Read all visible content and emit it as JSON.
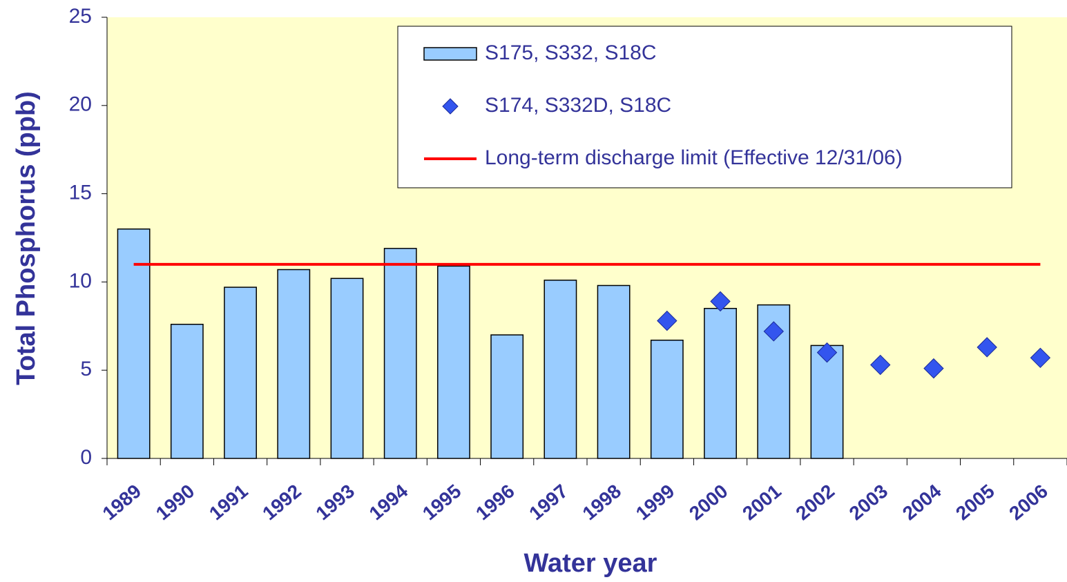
{
  "chart_data": {
    "type": "bar",
    "x_label": "Water year",
    "y_label": "Total Phosphorus (ppb)",
    "categories": [
      "1989",
      "1990",
      "1991",
      "1992",
      "1993",
      "1994",
      "1995",
      "1996",
      "1997",
      "1998",
      "1999",
      "2000",
      "2001",
      "2002",
      "2003",
      "2004",
      "2005",
      "2006"
    ],
    "series": [
      {
        "name": "S175, S332, S18C",
        "type": "bar",
        "color": "#99ccff",
        "values": [
          13.0,
          7.6,
          9.7,
          10.7,
          10.2,
          11.9,
          10.9,
          7.0,
          10.1,
          9.8,
          6.7,
          8.5,
          8.7,
          6.4,
          null,
          null,
          null,
          null
        ]
      },
      {
        "name": "S174, S332D, S18C",
        "type": "scatter",
        "color": "#3355ee",
        "values": [
          null,
          null,
          null,
          null,
          null,
          null,
          null,
          null,
          null,
          null,
          7.8,
          8.9,
          7.2,
          6.0,
          5.3,
          5.1,
          6.3,
          5.7
        ]
      },
      {
        "name": "Long-term discharge limit (Effective 12/31/06)",
        "type": "line",
        "color": "#ff0000",
        "values": [
          11,
          11,
          11,
          11,
          11,
          11,
          11,
          11,
          11,
          11,
          11,
          11,
          11,
          11,
          11,
          11,
          11,
          11
        ]
      }
    ],
    "ylim": [
      0,
      25
    ],
    "yticks": [
      0,
      5,
      10,
      15,
      20,
      25
    ],
    "grid": false,
    "legend": "top-right"
  }
}
